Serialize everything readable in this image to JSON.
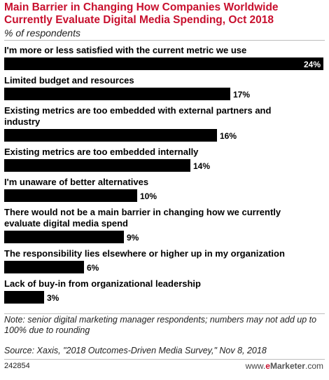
{
  "header": {
    "title": "Main Barrier in Changing How Companies Worldwide Currently Evaluate Digital Media Spending, Oct 2018",
    "subtitle": "% of respondents"
  },
  "chart_data": {
    "type": "bar",
    "orientation": "horizontal",
    "title": "Main Barrier in Changing How Companies Worldwide Currently Evaluate Digital Media Spending, Oct 2018",
    "subtitle": "% of respondents",
    "categories": [
      "I'm more or less satisfied with the current metric we use",
      "Limited budget and resources",
      "Existing metrics are too embedded with external partners and industry",
      "Existing metrics are too embedded internally",
      "I'm unaware of better alternatives",
      "There would not be a main barrier in changing how we currently evaluate digital media spend",
      "The responsibility lies elsewhere or higher up in my organization",
      "Lack of buy-in from organizational leadership"
    ],
    "category_lines": [
      [
        "I'm more or less satisfied with the current metric we use"
      ],
      [
        "Limited budget and resources"
      ],
      [
        "Existing metrics are too embedded with external partners and",
        "industry"
      ],
      [
        "Existing metrics are too embedded internally"
      ],
      [
        "I'm unaware of better alternatives"
      ],
      [
        "There would not be a main barrier in changing how we currently",
        "evaluate digital media spend"
      ],
      [
        "The responsibility lies elsewhere or higher up in my organization"
      ],
      [
        "Lack of buy-in from organizational leadership"
      ]
    ],
    "values": [
      24,
      17,
      16,
      14,
      10,
      9,
      6,
      3
    ],
    "value_labels": [
      "24%",
      "17%",
      "16%",
      "14%",
      "10%",
      "9%",
      "6%",
      "3%"
    ],
    "xlim": [
      0,
      24
    ],
    "grid": false,
    "bar_color": "#000000"
  },
  "footer": {
    "note": "Note: senior digital marketing manager respondents; numbers may not add up to 100% due to rounding",
    "source": "Source: Xaxis, \"2018 Outcomes-Driven Media Survey,\" Nov 8, 2018",
    "chart_id": "242854",
    "brand_prefix": "www.",
    "brand_e": "e",
    "brand_rest": "Marketer",
    "brand_suffix": ".com"
  }
}
